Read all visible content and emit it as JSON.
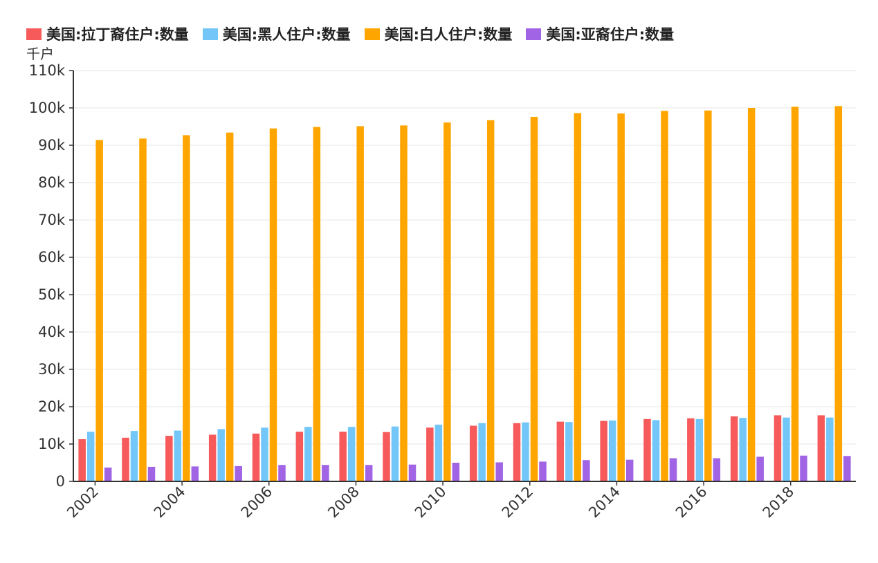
{
  "legend": {
    "items": [
      {
        "label": "美国:拉丁裔住户:数量",
        "color": "#F65A5A"
      },
      {
        "label": "美国:黑人住户:数量",
        "color": "#73C7F8"
      },
      {
        "label": "美国:白人住户:数量",
        "color": "#FFA500"
      },
      {
        "label": "美国:亚裔住户:数量",
        "color": "#A064E4"
      }
    ]
  },
  "unit_label": "千户",
  "chart_data": {
    "type": "bar",
    "categories": [
      "2002",
      "2003",
      "2004",
      "2005",
      "2006",
      "2007",
      "2008",
      "2009",
      "2010",
      "2011",
      "2012",
      "2013",
      "2014",
      "2015",
      "2016",
      "2017",
      "2018",
      "2019"
    ],
    "x_tick_labels": [
      "2002",
      "2004",
      "2006",
      "2008",
      "2010",
      "2012",
      "2014",
      "2016",
      "2018"
    ],
    "ylabel": "千户",
    "ylim": [
      0,
      110000
    ],
    "yticks": [
      0,
      10000,
      20000,
      30000,
      40000,
      50000,
      60000,
      70000,
      80000,
      90000,
      100000,
      110000
    ],
    "ytick_labels": [
      "0",
      "10k",
      "20k",
      "30k",
      "40k",
      "50k",
      "60k",
      "70k",
      "80k",
      "90k",
      "100k",
      "110k"
    ],
    "grid": true,
    "legend_position": "top-left",
    "series": [
      {
        "name": "美国:拉丁裔住户:数量",
        "color": "#F65A5A",
        "values": [
          11300,
          11700,
          12200,
          12500,
          12800,
          13300,
          13300,
          13200,
          14400,
          14900,
          15600,
          16000,
          16200,
          16700,
          16900,
          17400,
          17700,
          17700
        ]
      },
      {
        "name": "美国:黑人住户:数量",
        "color": "#73C7F8",
        "values": [
          13300,
          13500,
          13600,
          14000,
          14400,
          14600,
          14600,
          14700,
          15200,
          15600,
          15800,
          15900,
          16300,
          16400,
          16700,
          17000,
          17100,
          17100
        ]
      },
      {
        "name": "美国:白人住户:数量",
        "color": "#FFA500",
        "values": [
          91400,
          91800,
          92700,
          93400,
          94500,
          94900,
          95100,
          95300,
          96100,
          96700,
          97600,
          98600,
          98500,
          99200,
          99300,
          100000,
          100300,
          100500
        ]
      },
      {
        "name": "美国:亚裔住户:数量",
        "color": "#A064E4",
        "values": [
          3700,
          3900,
          4000,
          4100,
          4400,
          4400,
          4400,
          4500,
          5000,
          5100,
          5300,
          5700,
          5800,
          6200,
          6200,
          6600,
          6900,
          6800
        ]
      }
    ]
  }
}
